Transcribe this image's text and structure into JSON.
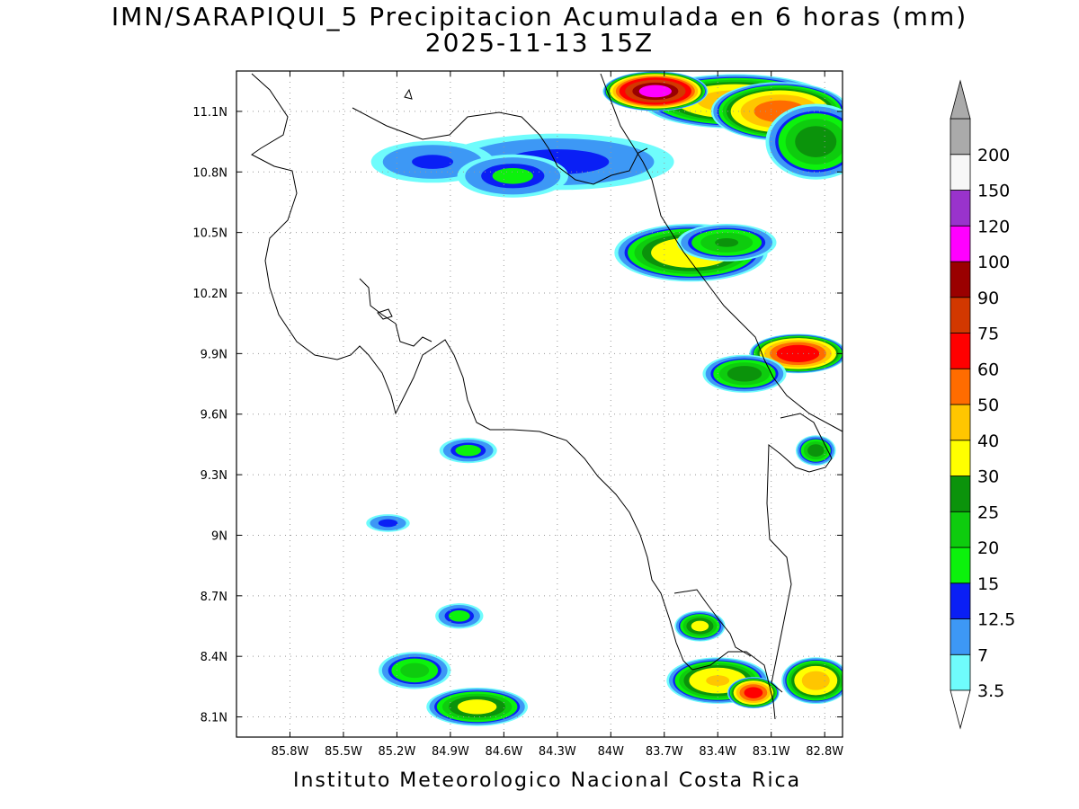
{
  "title": {
    "line1": "IMN/SARAPIQUI_5 Precipitacion Acumulada en 6 horas (mm)",
    "line2": "2025-11-13 15Z"
  },
  "footer": "Instituto Meteorologico Nacional Costa Rica",
  "map": {
    "lon_range": [
      -86.1,
      -82.7
    ],
    "lat_range": [
      8.0,
      11.3
    ],
    "x_ticks": [
      "85.8W",
      "85.5W",
      "85.2W",
      "84.9W",
      "84.6W",
      "84.3W",
      "84W",
      "83.7W",
      "83.4W",
      "83.1W",
      "82.8W"
    ],
    "x_tick_values": [
      -85.8,
      -85.5,
      -85.2,
      -84.9,
      -84.6,
      -84.3,
      -84.0,
      -83.7,
      -83.4,
      -83.1,
      -82.8
    ],
    "y_ticks": [
      "8.1N",
      "8.4N",
      "8.7N",
      "9N",
      "9.3N",
      "9.6N",
      "9.9N",
      "10.2N",
      "10.5N",
      "10.8N",
      "11.1N"
    ],
    "y_tick_values": [
      8.1,
      8.4,
      8.7,
      9.0,
      9.3,
      9.6,
      9.9,
      10.2,
      10.5,
      10.8,
      11.1
    ],
    "grid": "dotted"
  },
  "colorbar": {
    "labels": [
      "3.5",
      "7",
      "12.5",
      "15",
      "20",
      "25",
      "30",
      "40",
      "50",
      "60",
      "75",
      "90",
      "100",
      "120",
      "150",
      "200"
    ],
    "colors": [
      "#6ffcfc",
      "#3d98f5",
      "#0a1ff5",
      "#0cf20c",
      "#0ecc0e",
      "#0b930b",
      "#ffff00",
      "#ffc600",
      "#ff6c00",
      "#ff0000",
      "#d23800",
      "#9a0000",
      "#ff00ff",
      "#9933cc",
      "#f7f7f7",
      "#aaaaaa"
    ]
  },
  "precip_levels": [
    3.5,
    7,
    12.5,
    15,
    20,
    25,
    30,
    40,
    50,
    60,
    75,
    90,
    100,
    120,
    150,
    200
  ],
  "precip_cells": [
    {
      "lon": -84.3,
      "lat": 10.85,
      "rx": 0.75,
      "ry": 0.16,
      "max": 14
    },
    {
      "lon": -85.0,
      "lat": 10.85,
      "rx": 0.4,
      "ry": 0.12,
      "max": 13
    },
    {
      "lon": -84.55,
      "lat": 10.78,
      "rx": 0.35,
      "ry": 0.12,
      "max": 16
    },
    {
      "lon": -83.3,
      "lat": 11.15,
      "rx": 0.55,
      "ry": 0.14,
      "max": 45
    },
    {
      "lon": -83.75,
      "lat": 11.2,
      "rx": 0.3,
      "ry": 0.1,
      "max": 105
    },
    {
      "lon": -83.05,
      "lat": 11.1,
      "rx": 0.4,
      "ry": 0.15,
      "max": 55
    },
    {
      "lon": -82.85,
      "lat": 10.95,
      "rx": 0.3,
      "ry": 0.2,
      "max": 28
    },
    {
      "lon": -83.55,
      "lat": 10.4,
      "rx": 0.45,
      "ry": 0.15,
      "max": 38
    },
    {
      "lon": -83.35,
      "lat": 10.45,
      "rx": 0.3,
      "ry": 0.1,
      "max": 25
    },
    {
      "lon": -82.95,
      "lat": 9.9,
      "rx": 0.28,
      "ry": 0.1,
      "max": 70
    },
    {
      "lon": -83.25,
      "lat": 9.8,
      "rx": 0.25,
      "ry": 0.1,
      "max": 28
    },
    {
      "lon": -84.8,
      "lat": 9.42,
      "rx": 0.18,
      "ry": 0.07,
      "max": 17
    },
    {
      "lon": -85.25,
      "lat": 9.06,
      "rx": 0.14,
      "ry": 0.05,
      "max": 14
    },
    {
      "lon": -84.85,
      "lat": 8.6,
      "rx": 0.15,
      "ry": 0.07,
      "max": 17
    },
    {
      "lon": -85.1,
      "lat": 8.33,
      "rx": 0.22,
      "ry": 0.1,
      "max": 22
    },
    {
      "lon": -84.75,
      "lat": 8.15,
      "rx": 0.3,
      "ry": 0.1,
      "max": 33
    },
    {
      "lon": -83.5,
      "lat": 8.55,
      "rx": 0.15,
      "ry": 0.08,
      "max": 32
    },
    {
      "lon": -83.4,
      "lat": 8.28,
      "rx": 0.3,
      "ry": 0.12,
      "max": 40
    },
    {
      "lon": -83.2,
      "lat": 8.22,
      "rx": 0.15,
      "ry": 0.08,
      "max": 65
    },
    {
      "lon": -82.85,
      "lat": 8.28,
      "rx": 0.2,
      "ry": 0.12,
      "max": 45
    },
    {
      "lon": -82.85,
      "lat": 9.42,
      "rx": 0.12,
      "ry": 0.08,
      "max": 28
    }
  ]
}
